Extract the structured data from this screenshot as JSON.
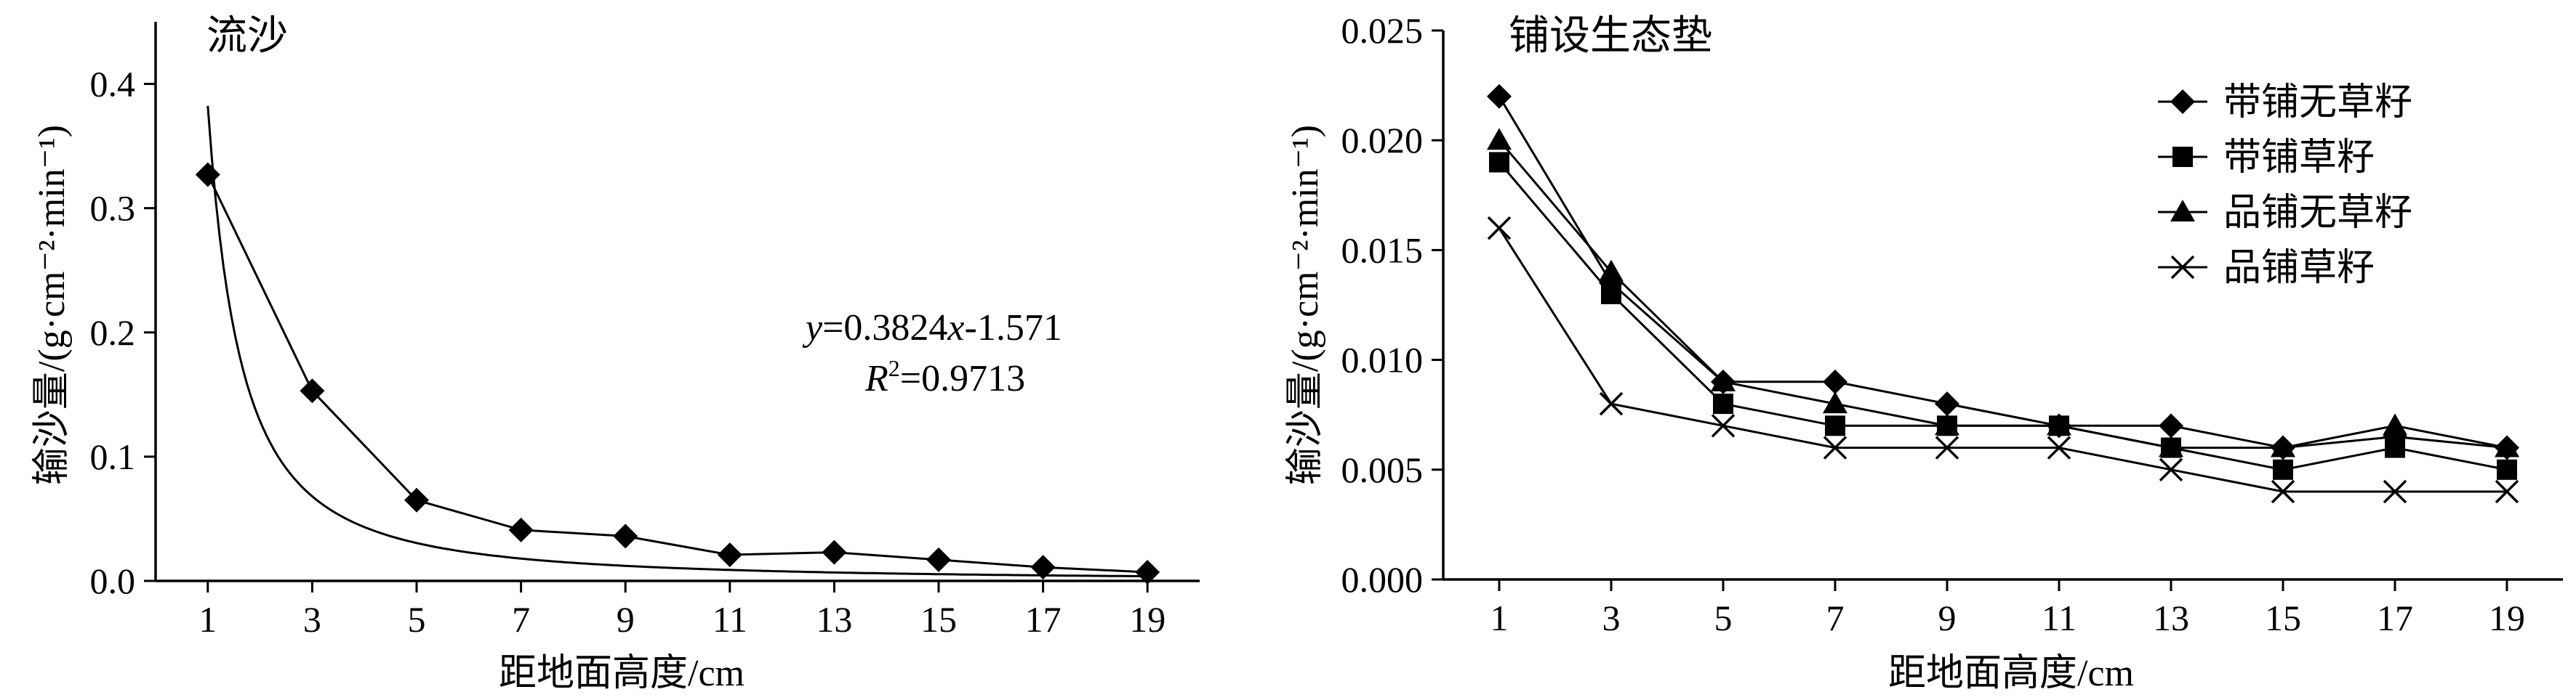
{
  "chart_data": [
    {
      "type": "line",
      "title": "流沙",
      "xlabel": "距地面高度/cm",
      "ylabel": "输沙量/(g·cm⁻²·min⁻¹)",
      "x": [
        1,
        3,
        5,
        7,
        9,
        11,
        13,
        15,
        17,
        19
      ],
      "xlim": [
        0,
        20
      ],
      "ylim": [
        0,
        0.45
      ],
      "xticks": [
        "1",
        "3",
        "5",
        "7",
        "9",
        "11",
        "13",
        "15",
        "17",
        "19"
      ],
      "yticks": [
        "0.0",
        "0.1",
        "0.2",
        "0.3",
        "0.4"
      ],
      "yticks_values": [
        0,
        0.1,
        0.2,
        0.3,
        0.4
      ],
      "series": [
        {
          "marker": "diamond",
          "values": [
            0.327,
            0.153,
            0.065,
            0.041,
            0.036,
            0.021,
            0.023,
            0.017,
            0.011,
            0.007
          ]
        }
      ],
      "fit": {
        "type": "power",
        "coefficient": 0.3824,
        "exponent": -1.571,
        "x_range": [
          1,
          19
        ]
      },
      "annotations": {
        "equation_y": "y",
        "equation_eq": "=0.3824",
        "equation_x": "x",
        "equation_exp": "-1.571",
        "r2_r": "R",
        "r2_sup": "2",
        "r2_value": "=0.9713"
      },
      "grid": false,
      "legend": "none"
    },
    {
      "type": "line",
      "title": "铺设生态垫",
      "xlabel": "距地面高度/cm",
      "ylabel": "输沙量/(g·cm⁻²·min⁻¹)",
      "x": [
        1,
        3,
        5,
        7,
        9,
        11,
        13,
        15,
        17,
        19
      ],
      "xlim": [
        0,
        20
      ],
      "ylim": [
        0,
        0.025
      ],
      "xticks": [
        "1",
        "3",
        "5",
        "7",
        "9",
        "11",
        "13",
        "15",
        "17",
        "19"
      ],
      "yticks": [
        "0.000",
        "0.005",
        "0.010",
        "0.015",
        "0.020",
        "0.025"
      ],
      "yticks_values": [
        0,
        0.005,
        0.01,
        0.015,
        0.02,
        0.025
      ],
      "series": [
        {
          "name": "带铺无草籽",
          "marker": "diamond",
          "values": [
            0.022,
            0.0135,
            0.009,
            0.009,
            0.008,
            0.007,
            0.007,
            0.006,
            0.0065,
            0.006
          ]
        },
        {
          "name": "带铺草籽",
          "marker": "square",
          "values": [
            0.019,
            0.013,
            0.008,
            0.007,
            0.007,
            0.007,
            0.006,
            0.005,
            0.006,
            0.005
          ]
        },
        {
          "name": "品铺无草籽",
          "marker": "triangle",
          "values": [
            0.02,
            0.014,
            0.009,
            0.008,
            0.007,
            0.007,
            0.006,
            0.006,
            0.007,
            0.006
          ]
        },
        {
          "name": "品铺草籽",
          "marker": "x",
          "values": [
            0.016,
            0.008,
            0.007,
            0.006,
            0.006,
            0.006,
            0.005,
            0.004,
            0.004,
            0.004
          ]
        }
      ],
      "grid": false,
      "legend": "top-right"
    }
  ]
}
